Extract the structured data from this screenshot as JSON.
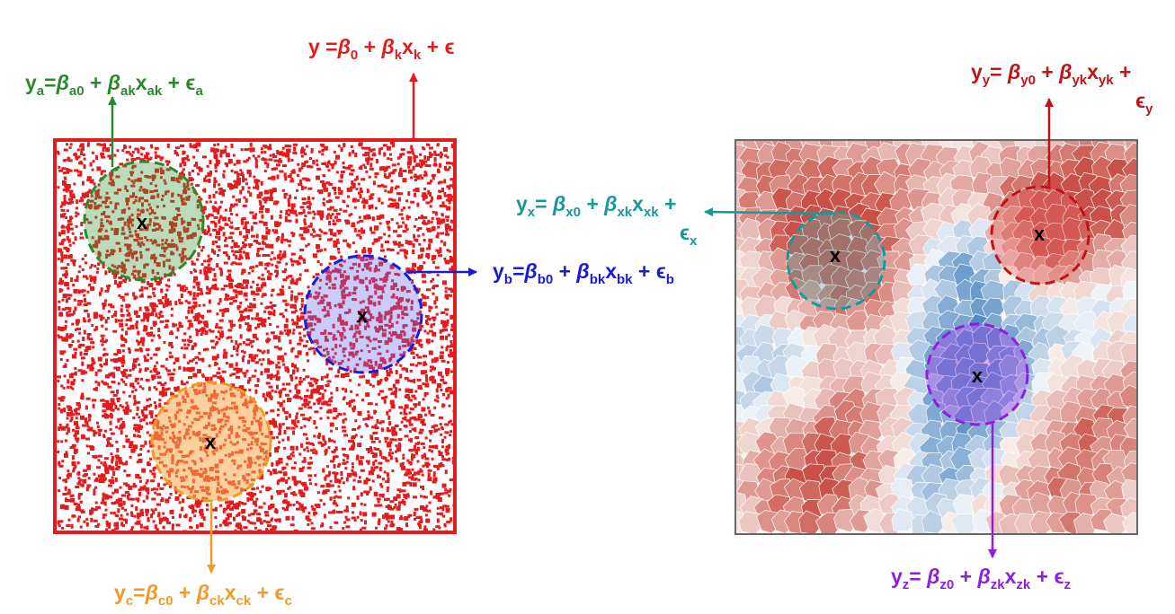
{
  "colors": {
    "global": "#e41a1c",
    "a": "#2a8a2a",
    "b": "#1a1adc",
    "c": "#f29a24",
    "x": "#17999b",
    "y": "#c01218",
    "z": "#8f1ee0",
    "frame_right": "#666666"
  },
  "left_panel": {
    "center_marker": "x",
    "global_eq": {
      "parts": [
        [
          "y =",
          "n"
        ],
        [
          "β",
          "b"
        ],
        [
          "0",
          "s"
        ],
        [
          " + ",
          "n"
        ],
        [
          "β",
          "b"
        ],
        [
          "k",
          "s"
        ],
        [
          "x",
          "n"
        ],
        [
          "k",
          "s"
        ],
        [
          " + ϵ",
          "n"
        ]
      ]
    },
    "circles": [
      {
        "id": "a",
        "marker": "x",
        "eq": {
          "parts": [
            [
              "y",
              "n"
            ],
            [
              "a",
              "s"
            ],
            [
              "=",
              "n"
            ],
            [
              "β",
              "b"
            ],
            [
              "a0",
              "s"
            ],
            [
              " + ",
              "n"
            ],
            [
              "β",
              "b"
            ],
            [
              "ak",
              "s"
            ],
            [
              "x",
              "n"
            ],
            [
              "ak",
              "s"
            ],
            [
              " + ϵ",
              "n"
            ],
            [
              "a",
              "s"
            ]
          ]
        }
      },
      {
        "id": "b",
        "marker": "x",
        "eq": {
          "parts": [
            [
              "y",
              "n"
            ],
            [
              "b",
              "s"
            ],
            [
              "=",
              "n"
            ],
            [
              "β",
              "b"
            ],
            [
              "b0",
              "s"
            ],
            [
              " + ",
              "n"
            ],
            [
              "β",
              "b"
            ],
            [
              "bk",
              "s"
            ],
            [
              "x",
              "n"
            ],
            [
              "bk",
              "s"
            ],
            [
              " + ϵ",
              "n"
            ],
            [
              "b",
              "s"
            ]
          ]
        }
      },
      {
        "id": "c",
        "marker": "x",
        "eq": {
          "parts": [
            [
              "y",
              "n"
            ],
            [
              "c",
              "s"
            ],
            [
              "=",
              "n"
            ],
            [
              "β",
              "b"
            ],
            [
              "c0",
              "s"
            ],
            [
              " + ",
              "n"
            ],
            [
              "β",
              "b"
            ],
            [
              "ck",
              "s"
            ],
            [
              "x",
              "n"
            ],
            [
              "ck",
              "s"
            ],
            [
              " + ϵ",
              "n"
            ],
            [
              "c",
              "s"
            ]
          ]
        }
      }
    ]
  },
  "right_panel": {
    "circles": [
      {
        "id": "x",
        "marker": "x",
        "eq_line1": {
          "parts": [
            [
              "y",
              "n"
            ],
            [
              "x",
              "s"
            ],
            [
              "= ",
              "n"
            ],
            [
              "β",
              "b"
            ],
            [
              "x0",
              "s"
            ],
            [
              " + ",
              "n"
            ],
            [
              "β",
              "b"
            ],
            [
              "xk",
              "s"
            ],
            [
              "x",
              "n"
            ],
            [
              "xk",
              "s"
            ],
            [
              " +",
              "n"
            ]
          ]
        },
        "eq_line2": {
          "parts": [
            [
              "ϵ",
              "n"
            ],
            [
              "x",
              "s"
            ]
          ]
        }
      },
      {
        "id": "y",
        "marker": "x",
        "eq_line1": {
          "parts": [
            [
              "y",
              "n"
            ],
            [
              "y",
              "s"
            ],
            [
              "= ",
              "n"
            ],
            [
              "β",
              "b"
            ],
            [
              "y0",
              "s"
            ],
            [
              " + ",
              "n"
            ],
            [
              "β",
              "b"
            ],
            [
              "yk",
              "s"
            ],
            [
              "x",
              "n"
            ],
            [
              "yk",
              "s"
            ],
            [
              " +",
              "n"
            ]
          ]
        },
        "eq_line2": {
          "parts": [
            [
              "ϵ",
              "n"
            ],
            [
              "y",
              "s"
            ]
          ]
        }
      },
      {
        "id": "z",
        "marker": "x",
        "eq_line1": {
          "parts": [
            [
              "y",
              "n"
            ],
            [
              "z",
              "s"
            ],
            [
              "= ",
              "n"
            ],
            [
              "β",
              "b"
            ],
            [
              "z0",
              "s"
            ],
            [
              " + ",
              "n"
            ],
            [
              "β",
              "b"
            ],
            [
              "zk",
              "s"
            ],
            [
              "x",
              "n"
            ],
            [
              "zk",
              "s"
            ],
            [
              " + ϵ",
              "n"
            ],
            [
              "z",
              "s"
            ]
          ]
        }
      }
    ]
  }
}
